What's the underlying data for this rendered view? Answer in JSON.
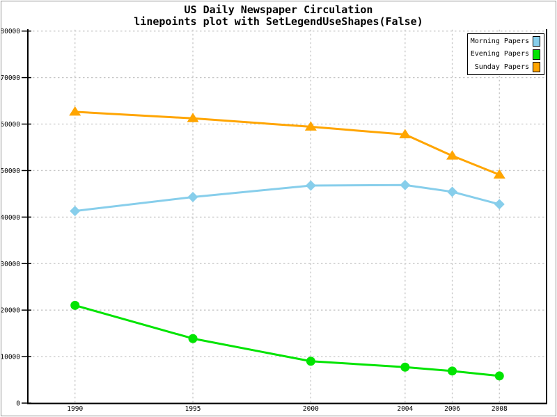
{
  "title": "US Daily Newspaper Circulation",
  "subtitle": "linepoints plot with SetLegendUseShapes(False)",
  "colors": {
    "background": "#ffffff",
    "frame": "#000000",
    "grid": "#c6c6c6",
    "outer_border": "#8f8f8f",
    "text": "#000000"
  },
  "chart_data": {
    "type": "line",
    "x": [
      1990,
      1995,
      2000,
      2004,
      2006,
      2008
    ],
    "series": [
      {
        "name": "Morning Papers",
        "color": "#87CEEB",
        "marker": "diamond",
        "values": [
          41311,
          44310,
          46772,
          46887,
          45441,
          42757
        ]
      },
      {
        "name": "Evening Papers",
        "color": "#00E400",
        "marker": "circle",
        "values": [
          21017,
          13883,
          9000,
          7738,
          6900,
          5840
        ]
      },
      {
        "name": "Sunday Papers",
        "color": "#FFA500",
        "marker": "triangle",
        "values": [
          62635,
          61229,
          59421,
          57754,
          53179,
          49115
        ]
      }
    ],
    "xlim": [
      1988,
      2010
    ],
    "ylim": [
      0,
      80000
    ],
    "x_ticks": [
      1990,
      1995,
      2000,
      2004,
      2006,
      2008
    ],
    "y_ticks": [
      0,
      10000,
      20000,
      30000,
      40000,
      50000,
      60000,
      70000,
      80000
    ],
    "grid": true,
    "grid_style": "dashed",
    "legend_position": "top-right",
    "legend_use_shapes": false
  }
}
